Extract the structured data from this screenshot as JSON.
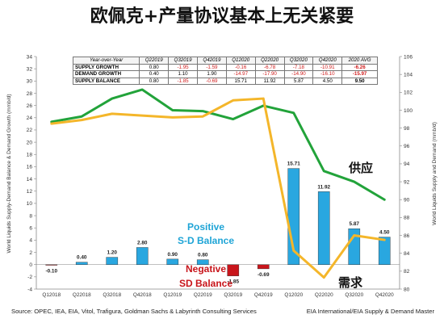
{
  "title": "欧佩克+产量协议基本上无关紧要",
  "source": "Source: OPEC, IEA, EIA, Vitol, Trafigura, Goldman Sachs & Labyrinth Consulting Services",
  "credit": "EIA International/EIA Supply & Demand Master",
  "table": {
    "headers": [
      "Year-over-Year",
      "Q22019",
      "Q32019",
      "Q42019",
      "Q12020",
      "Q22020",
      "Q32020",
      "Q42020",
      "2020 AVG"
    ],
    "rows": [
      {
        "label": "SUPPLY GROWTH",
        "values": [
          "0.80",
          "-1.95",
          "-1.59",
          "-0.16",
          "-6.78",
          "-7.18",
          "-10.91",
          "-6.26"
        ]
      },
      {
        "label": "DEMAND GROWTH",
        "values": [
          "0.40",
          "1.10",
          "1.90",
          "-14.97",
          "-17.90",
          "-14.90",
          "-16.10",
          "-15.97"
        ]
      },
      {
        "label": "SUPPLY BALANCE",
        "values": [
          "0.80",
          "-1.85",
          "-0.69",
          "15.71",
          "11.92",
          "5.87",
          "4.50",
          "9.50"
        ]
      }
    ]
  },
  "chart_data": {
    "type": "bar",
    "categories": [
      "Q12018",
      "Q22018",
      "Q32018",
      "Q42018",
      "Q12019",
      "Q22019",
      "Q32019",
      "Q42019",
      "Q12020",
      "Q22020",
      "Q32020",
      "Q42020"
    ],
    "ylabel": "World Liquids Supply-Demand Balance & Demand Growth (mmb/d)",
    "y2label": "World Liquids Supply and Demand (mmb/d)",
    "ylim": [
      -4,
      34
    ],
    "y_ticks": [
      -4,
      -2,
      0,
      2,
      4,
      6,
      8,
      10,
      12,
      14,
      16,
      18,
      20,
      22,
      24,
      26,
      28,
      30,
      32,
      34
    ],
    "y2lim": [
      80,
      106
    ],
    "y2_ticks": [
      80,
      82,
      84,
      86,
      88,
      90,
      92,
      94,
      96,
      98,
      100,
      102,
      104,
      106
    ],
    "bars": {
      "values": [
        -0.1,
        0.4,
        1.2,
        2.8,
        0.9,
        0.8,
        -1.85,
        -0.69,
        15.71,
        11.92,
        5.87,
        4.5
      ],
      "labels": [
        "-0.10",
        "0.40",
        "1.20",
        "2.80",
        "0.90",
        "0.80",
        "-1.85",
        "-0.69",
        "15.71",
        "11.92",
        "5.87",
        "4.50"
      ],
      "positive_color": "#29a7e0",
      "negative_color": "#c8151b"
    },
    "series": [
      {
        "name": "供应",
        "axis": "right",
        "color": "#22a33a",
        "values": [
          98.7,
          99.3,
          101.3,
          102.3,
          100.0,
          99.9,
          99.0,
          100.5,
          99.7,
          93.2,
          92.0,
          90.0
        ]
      },
      {
        "name": "需求",
        "axis": "right",
        "color": "#f4b62a",
        "values": [
          98.5,
          98.9,
          99.6,
          99.4,
          99.2,
          99.3,
          101.1,
          101.3,
          84.3,
          81.3,
          86.0,
          85.5
        ]
      }
    ],
    "annotations": [
      {
        "text": "Positive",
        "color": "#1ea4d6"
      },
      {
        "text": "S-D Balance",
        "color": "#1ea4d6"
      },
      {
        "text": "Negative",
        "color": "#c8151b"
      },
      {
        "text": "SD Balance",
        "color": "#c8151b"
      }
    ]
  }
}
